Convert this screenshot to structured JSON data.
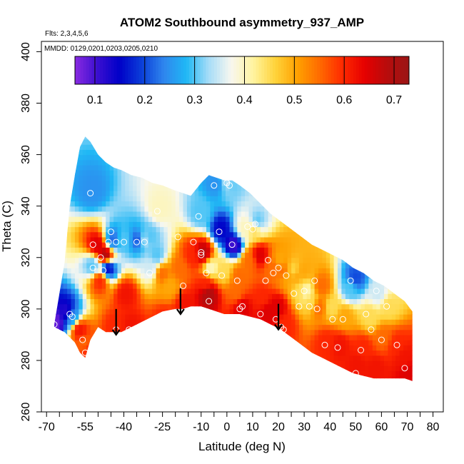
{
  "chart_data": {
    "type": "heatmap",
    "title": "ATOM2 Southbound asymmetry_937_AMP",
    "flights_note": "Flts: 2,3,4,5,6",
    "dates_note": "MMDD: 0129,0201,0203,0205,0210",
    "xlabel": "Latitude (deg N)",
    "ylabel": "Theta (C)",
    "xlim": [
      -72,
      84
    ],
    "ylim": [
      260,
      404
    ],
    "x_ticks": [
      -70,
      -65,
      -60,
      -55,
      -50,
      -45,
      -40,
      -35,
      -30,
      -25,
      -20,
      -15,
      -10,
      -5,
      0,
      5,
      10,
      15,
      20,
      25,
      30,
      35,
      40,
      45,
      50,
      55,
      60,
      65,
      70,
      75,
      80
    ],
    "x_tick_labels": [
      "-70",
      "-55",
      "-40",
      "-25",
      "-10",
      "0",
      "10",
      "20",
      "30",
      "40",
      "50",
      "60",
      "70",
      "80"
    ],
    "x_tick_label_values": [
      -70,
      -55,
      -40,
      -25,
      -10,
      0,
      10,
      20,
      30,
      40,
      50,
      60,
      70,
      80
    ],
    "y_ticks": [
      260,
      280,
      300,
      320,
      340,
      360,
      380,
      400
    ],
    "y_tick_labels": [
      "260",
      "280",
      "300",
      "320",
      "340",
      "360",
      "380",
      "400"
    ],
    "colorbar": {
      "range": [
        0.06,
        0.73
      ],
      "tick_values": [
        0.1,
        0.2,
        0.3,
        0.4,
        0.5,
        0.6,
        0.7
      ],
      "tick_labels": [
        "0.1",
        "0.2",
        "0.3",
        "0.4",
        "0.5",
        "0.6",
        "0.7"
      ],
      "colors": [
        "#8a2be2",
        "#3b0fd0",
        "#0000c8",
        "#0b3fd9",
        "#2f86ee",
        "#1fb8f5",
        "#a6dcf7",
        "#f7f7f0",
        "#fff4a0",
        "#ffd33a",
        "#ffa000",
        "#ff6a00",
        "#ff2a00",
        "#e60000",
        "#b80c0c",
        "#9a1616"
      ]
    },
    "envelope": {
      "latitude": [
        -67,
        -63,
        -61,
        -59,
        -57,
        -55,
        -53,
        -50,
        -47,
        -44,
        -41,
        -37,
        -33,
        -29,
        -25,
        -20,
        -17,
        -14,
        -10,
        -7,
        -4,
        -1,
        2,
        5,
        9,
        13,
        17,
        21,
        25,
        29,
        33,
        37,
        41,
        45,
        49,
        53,
        57,
        61,
        65,
        69,
        72
      ],
      "theta_top": [
        294,
        318,
        340,
        352,
        363,
        367,
        365,
        360,
        357,
        355,
        354,
        352,
        351,
        349,
        348,
        346,
        345,
        344,
        349,
        352,
        351,
        350,
        350,
        348,
        345,
        341,
        337,
        334,
        331,
        328,
        325,
        323,
        321,
        319,
        316,
        314,
        311,
        309,
        306,
        303,
        299
      ],
      "theta_bottom": [
        293,
        291,
        289,
        287,
        283,
        281,
        288,
        293,
        291,
        291,
        291,
        293,
        295,
        297,
        299,
        300,
        300,
        301,
        301,
        300,
        299,
        298,
        298,
        298,
        297,
        296,
        294,
        292,
        289,
        286,
        283,
        281,
        279,
        277,
        275,
        274,
        273,
        273,
        273,
        273,
        272
      ]
    },
    "observations": [
      {
        "lat": -67,
        "theta": 294,
        "value": 0.08
      },
      {
        "lat": -63,
        "theta": 298,
        "value": 0.12
      },
      {
        "lat": -61,
        "theta": 296,
        "value": 0.25
      },
      {
        "lat": -58,
        "theta": 291,
        "value": 0.62
      },
      {
        "lat": -56,
        "theta": 285,
        "value": 0.55
      },
      {
        "lat": -55,
        "theta": 283,
        "value": 0.6
      },
      {
        "lat": -53,
        "theta": 345,
        "value": 0.25
      },
      {
        "lat": -53,
        "theta": 316,
        "value": 0.3
      },
      {
        "lat": -51,
        "theta": 324,
        "value": 0.65
      },
      {
        "lat": -50,
        "theta": 310,
        "value": 0.6
      },
      {
        "lat": -48,
        "theta": 320,
        "value": 0.7
      },
      {
        "lat": -47,
        "theta": 315,
        "value": 0.15
      },
      {
        "lat": -45,
        "theta": 326,
        "value": 0.22
      },
      {
        "lat": -44,
        "theta": 292,
        "value": 0.6
      },
      {
        "lat": -41,
        "theta": 326,
        "value": 0.3
      },
      {
        "lat": -40,
        "theta": 305,
        "value": 0.62
      },
      {
        "lat": -38,
        "theta": 292,
        "value": 0.62
      },
      {
        "lat": -35,
        "theta": 326,
        "value": 0.2
      },
      {
        "lat": -33,
        "theta": 326,
        "value": 0.35
      },
      {
        "lat": -31,
        "theta": 327,
        "value": 0.3
      },
      {
        "lat": -30,
        "theta": 315,
        "value": 0.35
      },
      {
        "lat": -28,
        "theta": 320,
        "value": 0.3
      },
      {
        "lat": -27,
        "theta": 338,
        "value": 0.4
      },
      {
        "lat": -26,
        "theta": 313,
        "value": 0.55
      },
      {
        "lat": -25,
        "theta": 295,
        "value": 0.6
      },
      {
        "lat": -23,
        "theta": 308,
        "value": 0.5
      },
      {
        "lat": -19,
        "theta": 315,
        "value": 0.55
      },
      {
        "lat": -17,
        "theta": 301,
        "value": 0.62
      },
      {
        "lat": -14,
        "theta": 320,
        "value": 0.6
      },
      {
        "lat": -11,
        "theta": 336,
        "value": 0.3
      },
      {
        "lat": -10,
        "theta": 321,
        "value": 0.68
      },
      {
        "lat": -9,
        "theta": 309,
        "value": 0.6
      },
      {
        "lat": -8,
        "theta": 305,
        "value": 0.7
      },
      {
        "lat": -7,
        "theta": 315,
        "value": 0.4
      },
      {
        "lat": -5,
        "theta": 348,
        "value": 0.25
      },
      {
        "lat": -3,
        "theta": 330,
        "value": 0.15
      },
      {
        "lat": -2,
        "theta": 314,
        "value": 0.45
      },
      {
        "lat": 0,
        "theta": 349,
        "value": 0.35
      },
      {
        "lat": 1,
        "theta": 348,
        "value": 0.3
      },
      {
        "lat": 2,
        "theta": 324,
        "value": 0.1
      },
      {
        "lat": 3,
        "theta": 305,
        "value": 0.55
      },
      {
        "lat": 4,
        "theta": 312,
        "value": 0.55
      },
      {
        "lat": 5,
        "theta": 300,
        "value": 0.65
      },
      {
        "lat": 6,
        "theta": 330,
        "value": 0.4
      },
      {
        "lat": 8,
        "theta": 318,
        "value": 0.55
      },
      {
        "lat": 10,
        "theta": 330,
        "value": 0.45
      },
      {
        "lat": 11,
        "theta": 333,
        "value": 0.3
      },
      {
        "lat": 12,
        "theta": 320,
        "value": 0.65
      },
      {
        "lat": 13,
        "theta": 303,
        "value": 0.6
      },
      {
        "lat": 15,
        "theta": 298,
        "value": 0.65
      },
      {
        "lat": 17,
        "theta": 315,
        "value": 0.55
      },
      {
        "lat": 19,
        "theta": 300,
        "value": 0.65
      },
      {
        "lat": 20,
        "theta": 318,
        "value": 0.5
      },
      {
        "lat": 21,
        "theta": 314,
        "value": 0.55
      },
      {
        "lat": 22,
        "theta": 293,
        "value": 0.6
      },
      {
        "lat": 23,
        "theta": 312,
        "value": 0.5
      },
      {
        "lat": 25,
        "theta": 314,
        "value": 0.45
      },
      {
        "lat": 26,
        "theta": 312,
        "value": 0.5
      },
      {
        "lat": 28,
        "theta": 306,
        "value": 0.45
      },
      {
        "lat": 29,
        "theta": 314,
        "value": 0.5
      },
      {
        "lat": 30,
        "theta": 306,
        "value": 0.4
      },
      {
        "lat": 32,
        "theta": 302,
        "value": 0.45
      },
      {
        "lat": 35,
        "theta": 300,
        "value": 0.55
      },
      {
        "lat": 36,
        "theta": 308,
        "value": 0.55
      },
      {
        "lat": 38,
        "theta": 286,
        "value": 0.6
      },
      {
        "lat": 40,
        "theta": 300,
        "value": 0.45
      },
      {
        "lat": 43,
        "theta": 285,
        "value": 0.62
      },
      {
        "lat": 45,
        "theta": 296,
        "value": 0.5
      },
      {
        "lat": 47,
        "theta": 307,
        "value": 0.3
      },
      {
        "lat": 49,
        "theta": 311,
        "value": 0.2
      },
      {
        "lat": 50,
        "theta": 278,
        "value": 0.62
      },
      {
        "lat": 52,
        "theta": 284,
        "value": 0.6
      },
      {
        "lat": 55,
        "theta": 296,
        "value": 0.45
      },
      {
        "lat": 57,
        "theta": 276,
        "value": 0.62
      },
      {
        "lat": 58,
        "theta": 305,
        "value": 0.35
      },
      {
        "lat": 60,
        "theta": 288,
        "value": 0.55
      },
      {
        "lat": 62,
        "theta": 300,
        "value": 0.45
      },
      {
        "lat": 65,
        "theta": 285,
        "value": 0.6
      },
      {
        "lat": 68,
        "theta": 280,
        "value": 0.62
      },
      {
        "lat": 70,
        "theta": 274,
        "value": 0.65
      }
    ],
    "circles_lat_theta": [
      [
        -67,
        294
      ],
      [
        -61,
        298
      ],
      [
        -60,
        297
      ],
      [
        -56,
        288
      ],
      [
        -55,
        283
      ],
      [
        -53,
        345
      ],
      [
        -52,
        316
      ],
      [
        -52,
        325
      ],
      [
        -49,
        320
      ],
      [
        -48,
        315
      ],
      [
        -46,
        326
      ],
      [
        -45,
        330
      ],
      [
        -43,
        292
      ],
      [
        -43,
        326
      ],
      [
        -40,
        326
      ],
      [
        -38,
        292
      ],
      [
        -35,
        326
      ],
      [
        -32,
        326
      ],
      [
        -30,
        314
      ],
      [
        -27,
        338
      ],
      [
        -25,
        295
      ],
      [
        -19,
        328
      ],
      [
        -17,
        309
      ],
      [
        -13,
        326
      ],
      [
        -11,
        336
      ],
      [
        -10,
        322
      ],
      [
        -10,
        321
      ],
      [
        -8,
        314
      ],
      [
        -7,
        303
      ],
      [
        -5,
        348
      ],
      [
        -3,
        330
      ],
      [
        -2,
        313
      ],
      [
        0,
        349
      ],
      [
        1,
        348
      ],
      [
        2,
        325
      ],
      [
        4,
        311
      ],
      [
        5,
        300
      ],
      [
        6,
        301
      ],
      [
        8,
        332
      ],
      [
        10,
        331
      ],
      [
        11,
        333
      ],
      [
        13,
        298
      ],
      [
        15,
        311
      ],
      [
        16,
        319
      ],
      [
        18,
        314
      ],
      [
        19,
        296
      ],
      [
        20,
        316
      ],
      [
        21,
        293
      ],
      [
        22,
        292
      ],
      [
        23,
        313
      ],
      [
        26,
        306
      ],
      [
        28,
        301
      ],
      [
        30,
        307
      ],
      [
        32,
        301
      ],
      [
        34,
        311
      ],
      [
        35,
        300
      ],
      [
        38,
        286
      ],
      [
        41,
        296
      ],
      [
        43,
        285
      ],
      [
        45,
        296
      ],
      [
        48,
        311
      ],
      [
        50,
        275
      ],
      [
        52,
        284
      ],
      [
        54,
        298
      ],
      [
        56,
        292
      ],
      [
        58,
        307
      ],
      [
        60,
        288
      ],
      [
        62,
        301
      ],
      [
        66,
        286
      ],
      [
        69,
        277
      ]
    ],
    "arrows": [
      {
        "lat": -43,
        "theta_from": 296,
        "theta_to": 290
      },
      {
        "lat": -18,
        "theta_from": 304,
        "theta_to": 298
      },
      {
        "lat": 20,
        "theta_from": 298,
        "theta_to": 292
      }
    ]
  }
}
